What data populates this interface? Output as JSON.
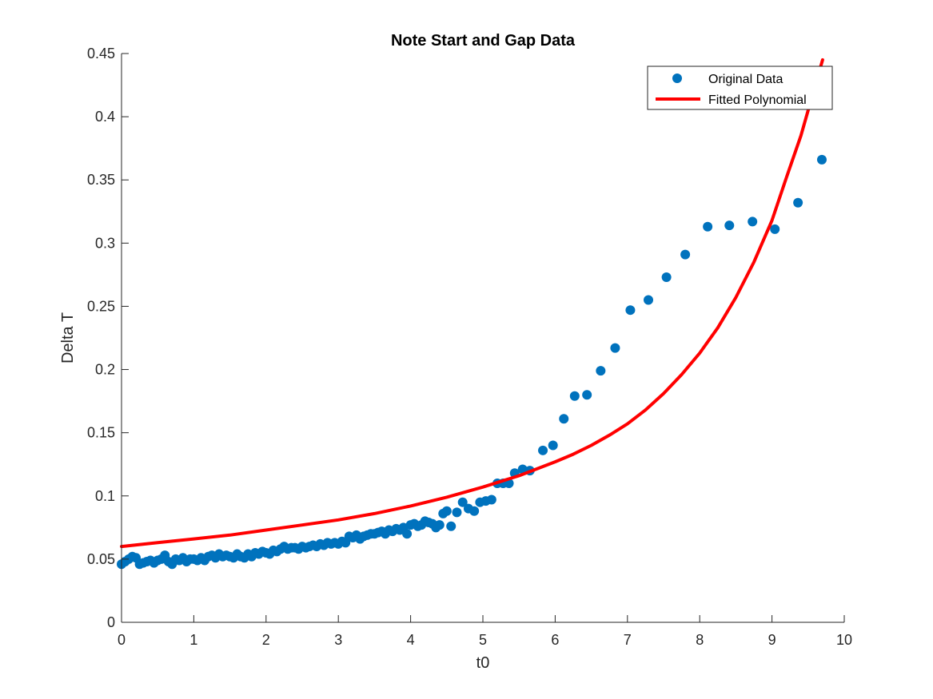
{
  "chart_data": {
    "type": "scatter",
    "title": "Note Start and Gap Data",
    "xlabel": "t0",
    "ylabel": "Delta T",
    "xlim": [
      0,
      10
    ],
    "ylim": [
      0,
      0.45
    ],
    "xticks": [
      "0",
      "1",
      "2",
      "3",
      "4",
      "5",
      "6",
      "7",
      "8",
      "9",
      "10"
    ],
    "yticks": [
      "0",
      "0.05",
      "0.1",
      "0.15",
      "0.2",
      "0.25",
      "0.3",
      "0.35",
      "0.4",
      "0.45"
    ],
    "grid": false,
    "legend_position": "top-right",
    "colors": {
      "original_data": "#0072BD",
      "fitted_polynomial": "#FF0000",
      "axes": "#262626"
    },
    "series": [
      {
        "name": "Original Data",
        "style": "markers",
        "x": [
          0.0,
          0.05,
          0.1,
          0.15,
          0.2,
          0.25,
          0.3,
          0.35,
          0.4,
          0.45,
          0.5,
          0.55,
          0.6,
          0.65,
          0.7,
          0.75,
          0.8,
          0.85,
          0.9,
          0.95,
          1.0,
          1.05,
          1.1,
          1.15,
          1.2,
          1.25,
          1.3,
          1.35,
          1.4,
          1.45,
          1.5,
          1.55,
          1.6,
          1.65,
          1.7,
          1.75,
          1.8,
          1.85,
          1.9,
          1.95,
          2.0,
          2.05,
          2.1,
          2.15,
          2.2,
          2.25,
          2.3,
          2.35,
          2.4,
          2.45,
          2.5,
          2.55,
          2.6,
          2.65,
          2.7,
          2.75,
          2.8,
          2.85,
          2.9,
          2.95,
          3.0,
          3.05,
          3.1,
          3.15,
          3.2,
          3.25,
          3.3,
          3.35,
          3.4,
          3.45,
          3.5,
          3.55,
          3.6,
          3.65,
          3.7,
          3.75,
          3.8,
          3.85,
          3.9,
          3.95,
          4.0,
          4.05,
          4.1,
          4.15,
          4.2,
          4.25,
          4.3,
          4.35,
          4.4,
          4.45,
          4.5,
          4.56,
          4.64,
          4.72,
          4.8,
          4.88,
          4.96,
          5.04,
          5.12,
          5.2,
          5.28,
          5.36,
          5.44,
          5.55,
          5.65,
          5.83,
          5.97,
          6.12,
          6.27,
          6.44,
          6.63,
          6.83,
          7.04,
          7.29,
          7.54,
          7.8,
          8.11,
          8.41,
          8.73,
          9.04,
          9.36,
          9.69
        ],
        "y": [
          0.046,
          0.048,
          0.05,
          0.052,
          0.051,
          0.046,
          0.047,
          0.048,
          0.049,
          0.047,
          0.049,
          0.05,
          0.053,
          0.048,
          0.046,
          0.05,
          0.049,
          0.051,
          0.048,
          0.05,
          0.05,
          0.049,
          0.051,
          0.049,
          0.052,
          0.053,
          0.051,
          0.054,
          0.052,
          0.053,
          0.052,
          0.051,
          0.054,
          0.052,
          0.051,
          0.054,
          0.052,
          0.055,
          0.054,
          0.056,
          0.055,
          0.054,
          0.057,
          0.056,
          0.058,
          0.06,
          0.058,
          0.059,
          0.059,
          0.058,
          0.06,
          0.059,
          0.06,
          0.061,
          0.06,
          0.062,
          0.061,
          0.063,
          0.062,
          0.063,
          0.062,
          0.064,
          0.063,
          0.068,
          0.067,
          0.069,
          0.066,
          0.068,
          0.069,
          0.07,
          0.07,
          0.071,
          0.072,
          0.07,
          0.073,
          0.072,
          0.074,
          0.073,
          0.075,
          0.07,
          0.077,
          0.078,
          0.076,
          0.077,
          0.08,
          0.079,
          0.078,
          0.075,
          0.077,
          0.086,
          0.088,
          0.076,
          0.087,
          0.095,
          0.09,
          0.088,
          0.095,
          0.096,
          0.097,
          0.11,
          0.11,
          0.11,
          0.118,
          0.121,
          0.12,
          0.136,
          0.14,
          0.161,
          0.179,
          0.18,
          0.199,
          0.217,
          0.247,
          0.255,
          0.273,
          0.291,
          0.313,
          0.314,
          0.317,
          0.311,
          0.332,
          0.366
        ]
      },
      {
        "name": "Fitted Polynomial",
        "style": "line",
        "x": [
          0.0,
          0.5,
          1.0,
          1.5,
          2.0,
          2.5,
          3.0,
          3.5,
          4.0,
          4.5,
          5.0,
          5.5,
          6.0,
          6.25,
          6.5,
          6.75,
          7.0,
          7.25,
          7.5,
          7.75,
          8.0,
          8.25,
          8.5,
          8.75,
          9.0,
          9.2,
          9.4,
          9.55,
          9.7
        ],
        "y": [
          0.06,
          0.063,
          0.066,
          0.069,
          0.073,
          0.077,
          0.081,
          0.086,
          0.092,
          0.099,
          0.107,
          0.116,
          0.127,
          0.133,
          0.14,
          0.148,
          0.157,
          0.168,
          0.181,
          0.196,
          0.213,
          0.233,
          0.257,
          0.285,
          0.318,
          0.352,
          0.385,
          0.415,
          0.445
        ]
      }
    ]
  }
}
